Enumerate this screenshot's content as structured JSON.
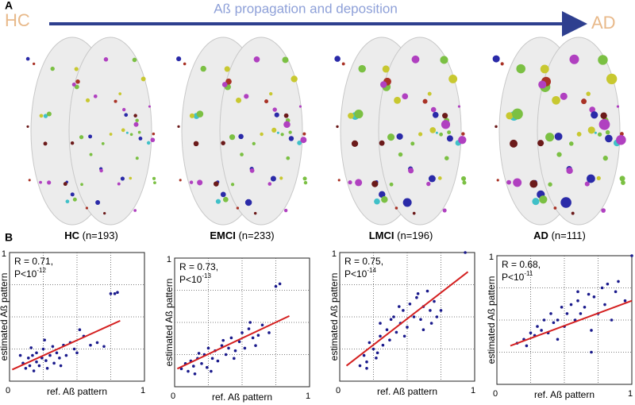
{
  "panel_a_label": "A",
  "panel_b_label": "B",
  "start_label": "HC",
  "end_label": "AD",
  "arrow_label": "Aß propagation and deposition",
  "groups": [
    {
      "name": "HC",
      "n": "(n=193)"
    },
    {
      "name": "EMCI",
      "n": "(n=233)"
    },
    {
      "name": "LMCI",
      "n": "(n=196)"
    },
    {
      "name": "AD",
      "n": "(n=111)"
    }
  ],
  "chart_data": [
    {
      "type": "scatter",
      "xlabel": "ref. Aß pattern",
      "ylabel": "estimated Aß pattern",
      "r_text": "R = 0.71,",
      "p_text": "P<10",
      "p_exp": "-12",
      "xlim": [
        0,
        1
      ],
      "ylim": [
        0,
        1
      ],
      "xticks": [
        0,
        1
      ],
      "yticks": [
        1
      ],
      "grid": [
        0.25,
        0.5,
        0.75
      ],
      "points": {
        "color": "#1a1a8c",
        "x": [
          0.1,
          0.12,
          0.14,
          0.15,
          0.17,
          0.18,
          0.2,
          0.2,
          0.22,
          0.24,
          0.25,
          0.27,
          0.28,
          0.3,
          0.32,
          0.33,
          0.35,
          0.37,
          0.4,
          0.42,
          0.45,
          0.48,
          0.5,
          0.55,
          0.6,
          0.65,
          0.7,
          0.75,
          0.78,
          0.8,
          0.08,
          0.16,
          0.26,
          0.38,
          0.52
        ],
        "y": [
          0.14,
          0.1,
          0.18,
          0.12,
          0.2,
          0.08,
          0.15,
          0.22,
          0.12,
          0.18,
          0.25,
          0.16,
          0.1,
          0.2,
          0.27,
          0.14,
          0.22,
          0.18,
          0.28,
          0.2,
          0.3,
          0.25,
          0.22,
          0.35,
          0.28,
          0.3,
          0.27,
          0.68,
          0.68,
          0.69,
          0.2,
          0.26,
          0.32,
          0.12,
          0.4
        ]
      },
      "fit": {
        "color": "#d42020",
        "x": [
          0.02,
          0.82
        ],
        "y": [
          0.09,
          0.47
        ]
      }
    },
    {
      "type": "scatter",
      "xlabel": "ref. Aß pattern",
      "ylabel": "estimated Aß pattern",
      "r_text": "R = 0.73,",
      "p_text": "P<10",
      "p_exp": "-13",
      "xlim": [
        0,
        1
      ],
      "ylim": [
        0,
        1
      ],
      "xticks": [
        0,
        1
      ],
      "yticks": [
        1
      ],
      "grid": [
        0.25,
        0.5,
        0.75
      ],
      "points": {
        "color": "#1a1a8c",
        "x": [
          0.05,
          0.08,
          0.1,
          0.12,
          0.14,
          0.15,
          0.17,
          0.2,
          0.22,
          0.24,
          0.25,
          0.28,
          0.3,
          0.32,
          0.35,
          0.38,
          0.4,
          0.42,
          0.45,
          0.48,
          0.5,
          0.52,
          0.55,
          0.58,
          0.6,
          0.62,
          0.65,
          0.7,
          0.75,
          0.78,
          0.18,
          0.27,
          0.36,
          0.44,
          0.56
        ],
        "y": [
          0.14,
          0.18,
          0.12,
          0.2,
          0.16,
          0.1,
          0.22,
          0.18,
          0.25,
          0.15,
          0.3,
          0.22,
          0.28,
          0.2,
          0.32,
          0.25,
          0.3,
          0.38,
          0.28,
          0.35,
          0.42,
          0.3,
          0.45,
          0.38,
          0.32,
          0.4,
          0.48,
          0.42,
          0.78,
          0.8,
          0.26,
          0.12,
          0.36,
          0.22,
          0.5
        ]
      },
      "fit": {
        "color": "#d42020",
        "x": [
          0.02,
          0.85
        ],
        "y": [
          0.14,
          0.55
        ]
      }
    },
    {
      "type": "scatter",
      "xlabel": "ref. Aß pattern",
      "ylabel": "estimated Aß pattern",
      "r_text": "R = 0.75,",
      "p_text": "P<10",
      "p_exp": "-14",
      "xlim": [
        0,
        1
      ],
      "ylim": [
        0,
        1
      ],
      "xticks": [
        0,
        1
      ],
      "yticks": [
        1
      ],
      "grid": [
        0.25,
        0.5,
        0.75
      ],
      "points": {
        "color": "#1a1a8c",
        "x": [
          0.15,
          0.18,
          0.2,
          0.22,
          0.25,
          0.27,
          0.3,
          0.3,
          0.32,
          0.35,
          0.37,
          0.4,
          0.42,
          0.45,
          0.47,
          0.5,
          0.52,
          0.55,
          0.57,
          0.6,
          0.62,
          0.65,
          0.67,
          0.7,
          0.72,
          0.75,
          0.93,
          0.28,
          0.38,
          0.48,
          0.58,
          0.68,
          0.2,
          0.44,
          0.62
        ],
        "y": [
          0.12,
          0.2,
          0.1,
          0.3,
          0.25,
          0.18,
          0.35,
          0.45,
          0.28,
          0.4,
          0.32,
          0.5,
          0.38,
          0.45,
          0.55,
          0.42,
          0.6,
          0.5,
          0.65,
          0.48,
          0.58,
          0.7,
          0.55,
          0.62,
          0.5,
          0.55,
          1,
          0.22,
          0.48,
          0.35,
          0.68,
          0.45,
          0.15,
          0.58,
          0.4
        ]
      },
      "fit": {
        "color": "#d42020",
        "x": [
          0.05,
          0.95
        ],
        "y": [
          0.12,
          0.85
        ]
      }
    },
    {
      "type": "scatter",
      "xlabel": "ref. Aß pattern",
      "ylabel": "estimated Aß pattern",
      "r_text": "R = 0.68,",
      "p_text": "P<10",
      "p_exp": "-11",
      "xlim": [
        0,
        1
      ],
      "ylim": [
        0,
        1
      ],
      "xticks": [
        0,
        1
      ],
      "yticks": [
        1
      ],
      "grid": [
        0.25,
        0.5,
        0.75
      ],
      "points": {
        "color": "#1a1a8c",
        "x": [
          0.15,
          0.2,
          0.22,
          0.25,
          0.28,
          0.3,
          0.33,
          0.35,
          0.38,
          0.4,
          0.42,
          0.45,
          0.48,
          0.5,
          0.52,
          0.55,
          0.58,
          0.6,
          0.62,
          0.65,
          0.68,
          0.7,
          0.72,
          0.75,
          0.78,
          0.8,
          0.82,
          0.85,
          0.88,
          0.9,
          0.95,
          1,
          0.45,
          0.6,
          0.7
        ],
        "y": [
          0.32,
          0.35,
          0.3,
          0.4,
          0.38,
          0.45,
          0.42,
          0.5,
          0.4,
          0.55,
          0.48,
          0.5,
          0.6,
          0.45,
          0.55,
          0.62,
          0.5,
          0.65,
          0.55,
          0.6,
          0.7,
          0.42,
          0.68,
          0.55,
          0.75,
          0.62,
          0.78,
          0.5,
          0.72,
          0.8,
          0.65,
          1,
          0.35,
          0.72,
          0.25
        ]
      },
      "fit": {
        "color": "#d42020",
        "x": [
          0.1,
          1
        ],
        "y": [
          0.3,
          0.65
        ]
      }
    }
  ]
}
